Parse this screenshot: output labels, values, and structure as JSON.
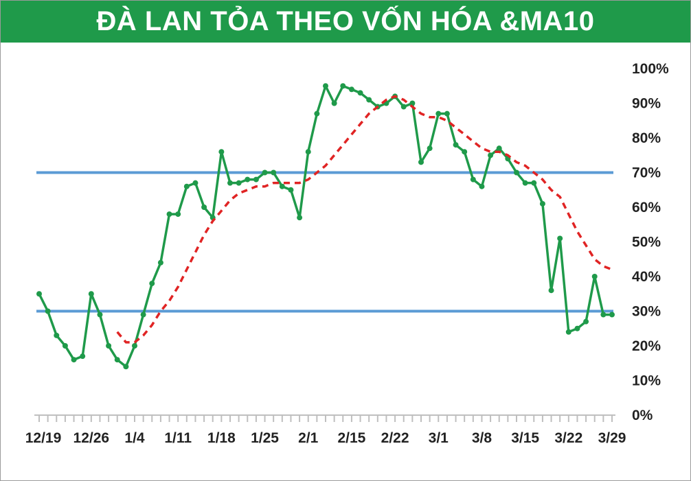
{
  "chart_data": {
    "type": "line",
    "title": "ĐÀ LAN TỎA THEO VỐN HÓA &MA10",
    "xlabel": "",
    "ylabel": "",
    "ylim": [
      0,
      100
    ],
    "y_ticks": [
      "0%",
      "10%",
      "20%",
      "30%",
      "40%",
      "50%",
      "60%",
      "70%",
      "80%",
      "90%",
      "100%"
    ],
    "x_tick_labels": [
      "12/19",
      "12/26",
      "1/4",
      "1/11",
      "1/18",
      "1/25",
      "2/1",
      "2/15",
      "2/22",
      "3/1",
      "3/8",
      "3/15",
      "3/22",
      "3/29"
    ],
    "x_tick_positions": [
      0,
      6,
      11,
      16,
      21,
      26,
      31,
      36,
      41,
      46,
      51,
      56,
      61,
      66
    ],
    "n_points": 67,
    "reference_lines": [
      {
        "value": 70,
        "color": "#5b9bd5"
      },
      {
        "value": 30,
        "color": "#5b9bd5"
      }
    ],
    "series": [
      {
        "style": "solid",
        "color": "#1f9a4a",
        "x": [
          0,
          1,
          2,
          3,
          4,
          5,
          6,
          7,
          8,
          9,
          10,
          11,
          12,
          13,
          14,
          15,
          16,
          17,
          18,
          19,
          20,
          21,
          22,
          23,
          24,
          25,
          26,
          27,
          28,
          29,
          30,
          31,
          32,
          33,
          34,
          35,
          36,
          37,
          38,
          39,
          40,
          41,
          42,
          43,
          44,
          45,
          46,
          47,
          48,
          49,
          50,
          51,
          52,
          53,
          54,
          55,
          56,
          57,
          58,
          59,
          60,
          61,
          62,
          63,
          64,
          65,
          66
        ],
        "values": [
          35,
          30,
          23,
          20,
          16,
          17,
          35,
          29,
          20,
          16,
          14,
          20,
          29,
          38,
          44,
          58,
          58,
          66,
          67,
          60,
          57,
          76,
          67,
          67,
          68,
          68,
          70,
          70,
          66,
          65,
          57,
          76,
          87,
          95,
          90,
          95,
          94,
          93,
          91,
          89,
          90,
          92,
          89,
          90,
          73,
          77,
          87,
          87,
          78,
          76,
          68,
          66,
          75,
          77,
          74,
          70,
          67,
          67,
          61,
          36,
          51,
          24,
          25,
          27,
          40,
          29,
          29
        ]
      },
      {
        "style": "dashed",
        "color": "#e02424",
        "x": [
          9,
          10,
          11,
          12,
          13,
          14,
          15,
          16,
          17,
          18,
          19,
          20,
          21,
          22,
          23,
          24,
          25,
          26,
          27,
          28,
          29,
          30,
          31,
          32,
          33,
          34,
          35,
          36,
          37,
          38,
          39,
          40,
          41,
          42,
          43,
          44,
          45,
          46,
          47,
          48,
          49,
          50,
          51,
          52,
          53,
          54,
          55,
          56,
          57,
          58,
          59,
          60,
          61,
          62,
          63,
          64,
          65,
          66
        ],
        "values": [
          24,
          21,
          21,
          23,
          26,
          30,
          33,
          37,
          42,
          47,
          52,
          56,
          59,
          62,
          64,
          65,
          66,
          66,
          67,
          67,
          67,
          67,
          68,
          70,
          72,
          75,
          78,
          81,
          84,
          87,
          89,
          91,
          92,
          91,
          89,
          87,
          86,
          86,
          85,
          83,
          81,
          79,
          77,
          76,
          76,
          75,
          73,
          72,
          70,
          68,
          65,
          63,
          58,
          53,
          49,
          45,
          43,
          42
        ]
      }
    ]
  }
}
